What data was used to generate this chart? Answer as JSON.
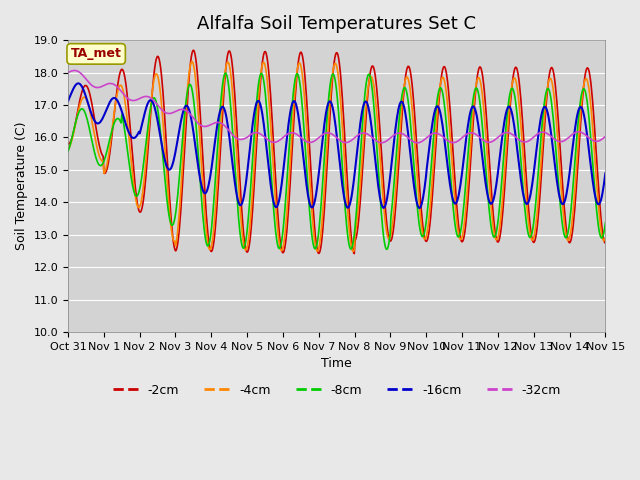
{
  "title": "Alfalfa Soil Temperatures Set C",
  "xlabel": "Time",
  "ylabel": "Soil Temperature (C)",
  "ylim": [
    10.0,
    19.0
  ],
  "yticks": [
    10.0,
    11.0,
    12.0,
    13.0,
    14.0,
    15.0,
    16.0,
    17.0,
    18.0,
    19.0
  ],
  "xtick_labels": [
    "Oct 31",
    "Nov 1",
    "Nov 2",
    "Nov 3",
    "Nov 4",
    "Nov 5",
    "Nov 6",
    "Nov 7",
    "Nov 8",
    "Nov 9",
    "Nov 10",
    "Nov 11",
    "Nov 12",
    "Nov 13",
    "Nov 14",
    "Nov 15"
  ],
  "n_days": 15,
  "colors": {
    "-2cm": "#cc0000",
    "-4cm": "#ff8800",
    "-8cm": "#00cc00",
    "-16cm": "#0000cc",
    "-32cm": "#cc44cc"
  },
  "legend_labels": [
    "-2cm",
    "-4cm",
    "-8cm",
    "-16cm",
    "-32cm"
  ],
  "ta_met_label": "TA_met",
  "background_color": "#e8e8e8",
  "plot_bg_color": "#d3d3d3",
  "title_fontsize": 13,
  "axis_fontsize": 9,
  "tick_fontsize": 8,
  "legend_fontsize": 9
}
